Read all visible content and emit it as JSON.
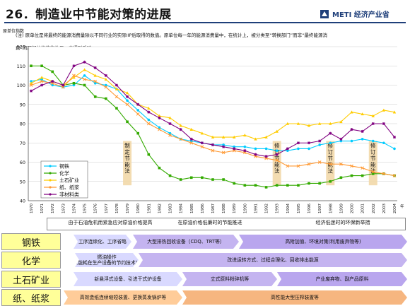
{
  "page": {
    "title": "26．制造业中节能对策的进展",
    "logo_text": "METI 经济产业省",
    "yaxis_caption": "原单位指数",
    "note_lines": [
      "(注) 原单位是将最终的能源消费量除以不同行业的实际IIP后取得的数值。原单位每一年的能源消费量中，在统计上，被分类至“转换部门”而非“最终能源消",
      "费”的那部分的节能效果，未得到反映。"
    ],
    "year_unit": "年"
  },
  "chart_data": {
    "type": "line",
    "x": [
      "1970",
      "1971",
      "1972",
      "1973",
      "1974",
      "1975",
      "1976",
      "1977",
      "1978",
      "1979",
      "1980",
      "1981",
      "1982",
      "1983",
      "1984",
      "1985",
      "1986",
      "1987",
      "1988",
      "1989",
      "1990",
      "1991",
      "1992",
      "1993",
      "1994",
      "1995",
      "1996",
      "1997",
      "1998",
      "1999",
      "2000",
      "2001",
      "2002",
      "2003",
      "2004"
    ],
    "ylim": [
      40,
      120
    ],
    "yticks": [
      40,
      50,
      60,
      70,
      80,
      90,
      100,
      110,
      120
    ],
    "series": [
      {
        "name": "钢铁",
        "color": "#00ccff",
        "marker": "circle",
        "values": [
          102,
          103,
          100,
          99,
          100,
          105,
          101,
          100,
          98,
          92,
          87,
          82,
          78,
          75,
          72,
          71,
          70,
          69,
          69,
          68,
          68,
          67,
          67,
          66,
          66,
          67,
          67,
          69,
          70,
          71,
          71,
          72,
          71,
          70,
          67
        ]
      },
      {
        "name": "化学",
        "color": "#33aa00",
        "marker": "square",
        "values": [
          110,
          110,
          107,
          100,
          101,
          100,
          94,
          93,
          88,
          81,
          75,
          64,
          57,
          53,
          51,
          52,
          52,
          51,
          51,
          49,
          48,
          48,
          47,
          48,
          48,
          48,
          49,
          49,
          50,
          52,
          53,
          53,
          54,
          54,
          53
        ]
      },
      {
        "name": "土石矿业",
        "color": "#ffcc00",
        "marker": "triangle",
        "values": [
          101,
          104,
          102,
          100,
          104,
          108,
          105,
          103,
          98,
          96,
          90,
          88,
          84,
          83,
          79,
          77,
          75,
          73,
          73,
          73,
          74,
          72,
          73,
          76,
          80,
          80,
          79,
          80,
          80,
          81,
          86,
          85,
          84,
          87,
          86
        ]
      },
      {
        "name": "纸、纸浆",
        "color": "#ff9933",
        "marker": "cross",
        "values": [
          100,
          102,
          101,
          99,
          105,
          103,
          102,
          99,
          94,
          90,
          85,
          80,
          77,
          74,
          72,
          70,
          68,
          66,
          65,
          66,
          65,
          63,
          62,
          61,
          58,
          58,
          59,
          60,
          59,
          59,
          58,
          57,
          55,
          54,
          53
        ]
      },
      {
        "name": "非材料类",
        "color": "#800080",
        "marker": "star",
        "values": [
          97,
          100,
          102,
          100,
          110,
          112,
          109,
          105,
          100,
          94,
          90,
          86,
          83,
          80,
          77,
          72,
          70,
          69,
          68,
          67,
          66,
          64,
          63,
          64,
          67,
          70,
          70,
          71,
          75,
          72,
          77,
          76,
          80,
          80,
          73
        ]
      }
    ],
    "vertical_annotations": [
      {
        "text": "制定节能法",
        "x": "1979"
      },
      {
        "text": "修订节能法",
        "x": "1993"
      },
      {
        "text": "修订节能法",
        "x": "1998"
      },
      {
        "text": "修订节能法",
        "x": "2002"
      }
    ]
  },
  "timeline": {
    "headers": [
      "由于石油危机而紧急应对原油价格提高",
      "在原油价格低廉时的节能推进",
      "经济低迷时的环保新举措"
    ],
    "rows": [
      {
        "label": "钢铁",
        "items": [
          "工序连续化、工序省略",
          "大型排热回收设备（CDQ、TRT等）",
          "高附加值、环境对策(利用废弃物等)"
        ]
      },
      {
        "label": "化学",
        "items": [
          "燃油操作\n(能耗在生产设备的节约技术)",
          "改进运转方式、过程合理化、回收排出能源"
        ]
      },
      {
        "label": "土石矿业",
        "items": [
          "新悬浮式设备、引进干式炉设备",
          "立式原料粉碎机等",
          "产业废弃物、副产品原料"
        ]
      },
      {
        "label": "纸、纸浆",
        "items": [
          "高效造纸连续缩短装置、更换蒸发锅炉等",
          "高性能大型压榨装置等"
        ]
      }
    ]
  }
}
